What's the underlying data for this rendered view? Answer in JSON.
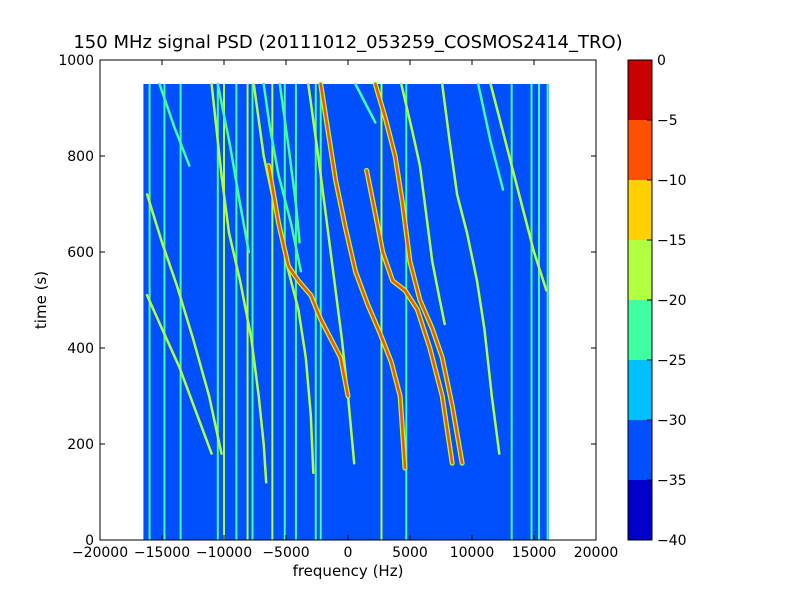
{
  "chart_data": {
    "type": "heatmap",
    "title": "150 MHz signal PSD (20111012_053259_COSMOS2414_TRO)",
    "xlabel": "frequency (Hz)",
    "ylabel": "time (s)",
    "xlim": [
      -20000,
      20000
    ],
    "ylim": [
      0,
      1000
    ],
    "x_ticks": [
      -20000,
      -15000,
      -10000,
      -5000,
      0,
      5000,
      10000,
      15000,
      20000
    ],
    "y_ticks": [
      0,
      200,
      400,
      600,
      800,
      1000
    ],
    "data_extent": {
      "x": [
        -16500,
        16200
      ],
      "y": [
        0,
        950
      ]
    },
    "background_level": -35,
    "colorbar": {
      "levels": [
        -40,
        -35,
        -30,
        -25,
        -20,
        -15,
        -10,
        -5,
        0
      ],
      "colors": [
        "#0000c8",
        "#0050ff",
        "#00c0ff",
        "#40ffa0",
        "#b0ff40",
        "#ffd000",
        "#ff5000",
        "#c80000"
      ],
      "tick_labels": [
        "0",
        "−5",
        "−10",
        "−15",
        "−20",
        "−25",
        "−30",
        "−35",
        "−40"
      ]
    },
    "vertical_lines": [
      {
        "x": -16000,
        "level": -25
      },
      {
        "x": -14800,
        "level": -25
      },
      {
        "x": -13500,
        "level": -25
      },
      {
        "x": -10500,
        "level": -25
      },
      {
        "x": -10000,
        "level": -20
      },
      {
        "x": -9000,
        "level": -25
      },
      {
        "x": -8100,
        "level": -20
      },
      {
        "x": -7700,
        "level": -25
      },
      {
        "x": -6100,
        "level": -20
      },
      {
        "x": -5100,
        "level": -25
      },
      {
        "x": -4200,
        "level": -25
      },
      {
        "x": -2600,
        "level": -25
      },
      {
        "x": -2200,
        "level": -25
      },
      {
        "x": 2700,
        "level": -20
      },
      {
        "x": 4700,
        "level": -25
      },
      {
        "x": 13200,
        "level": -25
      },
      {
        "x": 14800,
        "level": -25
      },
      {
        "x": 15400,
        "level": -25
      },
      {
        "x": 16100,
        "level": -25
      }
    ],
    "tracks": [
      {
        "points": [
          [
            -16200,
            720
          ],
          [
            -15000,
            620
          ],
          [
            -13800,
            530
          ],
          [
            -12500,
            420
          ],
          [
            -11200,
            300
          ],
          [
            -10200,
            180
          ]
        ],
        "level": -20
      },
      {
        "points": [
          [
            -16200,
            510
          ],
          [
            -15000,
            440
          ],
          [
            -13600,
            360
          ],
          [
            -12300,
            270
          ],
          [
            -11000,
            180
          ]
        ],
        "level": -20
      },
      {
        "points": [
          [
            -15200,
            950
          ],
          [
            -14000,
            860
          ],
          [
            -12800,
            780
          ]
        ],
        "level": -25
      },
      {
        "points": [
          [
            -11000,
            950
          ],
          [
            -10200,
            760
          ],
          [
            -9600,
            640
          ],
          [
            -8700,
            540
          ],
          [
            -7800,
            420
          ],
          [
            -7200,
            300
          ],
          [
            -6800,
            200
          ],
          [
            -6600,
            120
          ]
        ],
        "level": -20
      },
      {
        "points": [
          [
            -10500,
            950
          ],
          [
            -9500,
            820
          ],
          [
            -8700,
            700
          ],
          [
            -8000,
            600
          ]
        ],
        "level": -25
      },
      {
        "points": [
          [
            -7600,
            950
          ],
          [
            -6800,
            800
          ],
          [
            -5800,
            680
          ],
          [
            -5000,
            580
          ],
          [
            -4000,
            480
          ],
          [
            -3400,
            380
          ],
          [
            -3000,
            260
          ],
          [
            -2800,
            140
          ]
        ],
        "level": -20
      },
      {
        "points": [
          [
            -6800,
            950
          ],
          [
            -6300,
            860
          ],
          [
            -5600,
            760
          ],
          [
            -4600,
            660
          ],
          [
            -3800,
            560
          ]
        ],
        "level": -25
      },
      {
        "points": [
          [
            -5500,
            950
          ],
          [
            -4800,
            820
          ],
          [
            -4200,
            700
          ],
          [
            -3900,
            620
          ]
        ],
        "level": -25
      },
      {
        "points": [
          [
            -3200,
            950
          ],
          [
            -2400,
            800
          ],
          [
            -1800,
            680
          ],
          [
            -1200,
            560
          ],
          [
            -500,
            420
          ],
          [
            0,
            300
          ],
          [
            500,
            160
          ]
        ],
        "level": -20
      },
      {
        "points": [
          [
            -6400,
            780
          ],
          [
            -5600,
            660
          ],
          [
            -4800,
            570
          ],
          [
            -4000,
            540
          ],
          [
            -3000,
            510
          ],
          [
            -2200,
            460
          ],
          [
            -1400,
            420
          ],
          [
            -600,
            380
          ],
          [
            0,
            300
          ]
        ],
        "level": -10
      },
      {
        "points": [
          [
            -2200,
            950
          ],
          [
            -1000,
            750
          ],
          [
            -200,
            650
          ],
          [
            600,
            560
          ],
          [
            1600,
            490
          ],
          [
            2600,
            430
          ],
          [
            3500,
            370
          ],
          [
            4200,
            300
          ],
          [
            4600,
            150
          ]
        ],
        "level": -10
      },
      {
        "points": [
          [
            600,
            950
          ],
          [
            1600,
            900
          ],
          [
            2200,
            870
          ]
        ],
        "level": -25
      },
      {
        "points": [
          [
            2200,
            950
          ],
          [
            3000,
            880
          ],
          [
            3800,
            800
          ],
          [
            4400,
            700
          ],
          [
            5000,
            580
          ],
          [
            5800,
            500
          ],
          [
            6800,
            440
          ],
          [
            7600,
            380
          ],
          [
            8400,
            280
          ],
          [
            9200,
            160
          ]
        ],
        "level": -10
      },
      {
        "points": [
          [
            4300,
            950
          ],
          [
            5200,
            850
          ],
          [
            5800,
            780
          ],
          [
            6200,
            700
          ],
          [
            6800,
            580
          ],
          [
            7400,
            500
          ],
          [
            7800,
            450
          ]
        ],
        "level": -20
      },
      {
        "points": [
          [
            1500,
            770
          ],
          [
            2200,
            680
          ],
          [
            2800,
            600
          ],
          [
            3600,
            540
          ],
          [
            4600,
            520
          ],
          [
            5600,
            480
          ],
          [
            6600,
            400
          ],
          [
            7600,
            300
          ],
          [
            8400,
            160
          ]
        ],
        "level": -10
      },
      {
        "points": [
          [
            7600,
            950
          ],
          [
            8200,
            830
          ],
          [
            8800,
            720
          ],
          [
            9600,
            640
          ],
          [
            10400,
            540
          ],
          [
            11000,
            440
          ],
          [
            11600,
            300
          ],
          [
            12200,
            180
          ]
        ],
        "level": -20
      },
      {
        "points": [
          [
            11500,
            950
          ],
          [
            12200,
            880
          ],
          [
            13000,
            800
          ],
          [
            14000,
            700
          ],
          [
            15000,
            600
          ],
          [
            16000,
            520
          ]
        ],
        "level": -20
      },
      {
        "points": [
          [
            10500,
            950
          ],
          [
            11500,
            830
          ],
          [
            12500,
            730
          ]
        ],
        "level": -25
      }
    ]
  }
}
